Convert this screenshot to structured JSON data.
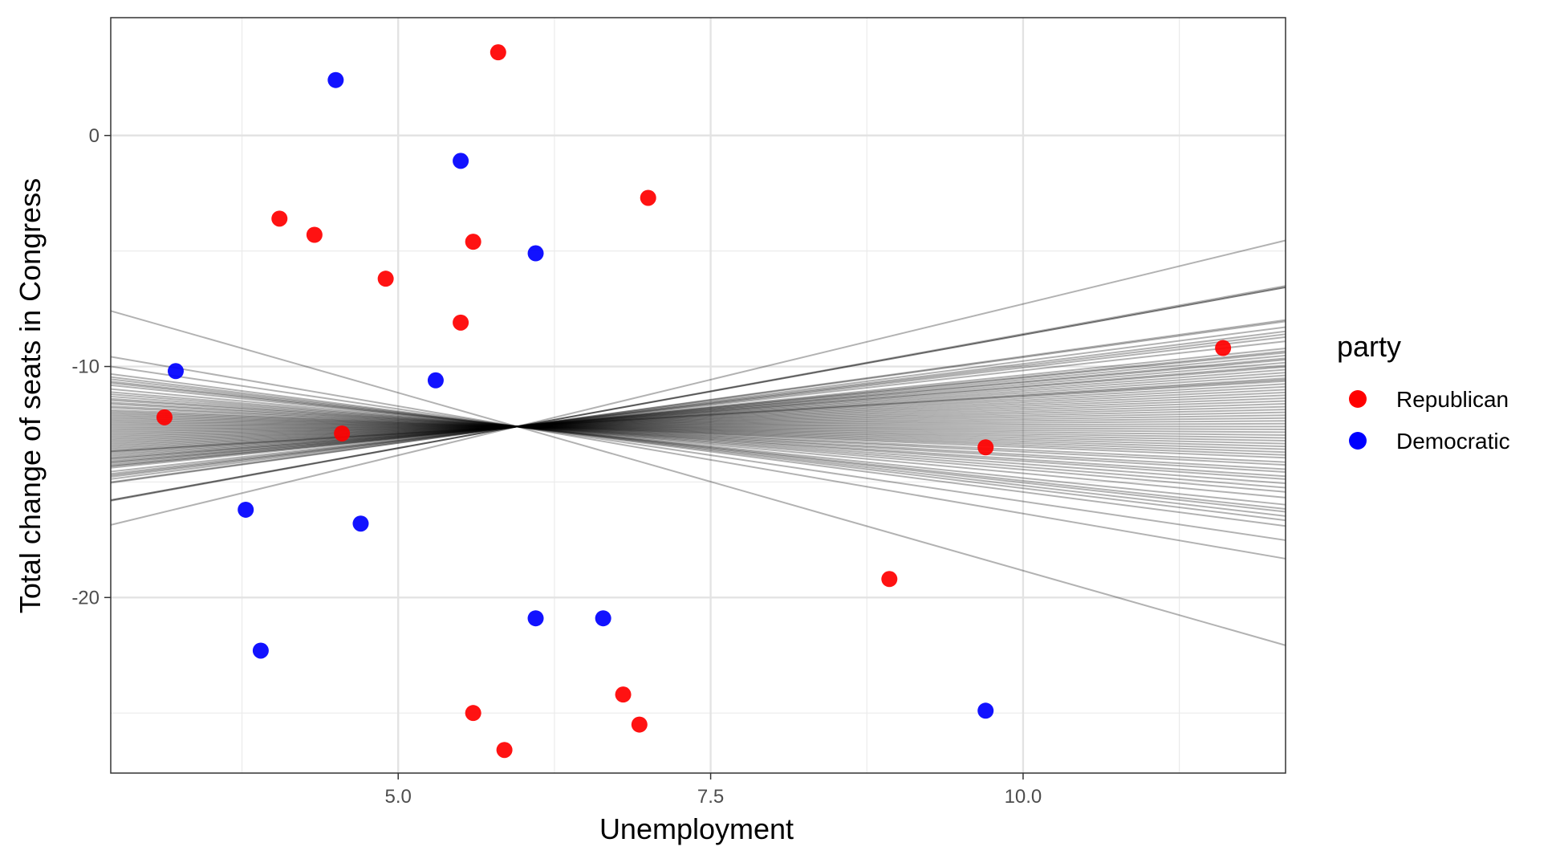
{
  "chart_data": {
    "type": "scatter",
    "xlabel": "Unemployment",
    "ylabel": "Total change of seats in Congress",
    "xlim": [
      2.7,
      12.1
    ],
    "ylim": [
      -27.6,
      5.1
    ],
    "x_ticks": [
      5.0,
      7.5,
      10.0
    ],
    "x_tick_labels": [
      "5.0",
      "7.5",
      "10.0"
    ],
    "x_minor_ticks": [
      3.75,
      6.25,
      8.75,
      11.25
    ],
    "y_ticks": [
      0,
      -10,
      -20
    ],
    "y_tick_labels": [
      "0",
      "-10",
      "-20"
    ],
    "y_minor_ticks": [
      -5,
      -15,
      -25
    ],
    "grid": true,
    "legend": {
      "title": "party",
      "position": "right",
      "entries": [
        {
          "label": "Republican",
          "color": "#ff0000"
        },
        {
          "label": "Democratic",
          "color": "#0000ff"
        }
      ]
    },
    "series": [
      {
        "name": "Republican",
        "color": "#ff0000",
        "points": [
          [
            5.8,
            3.6
          ],
          [
            4.05,
            -3.6
          ],
          [
            4.33,
            -4.3
          ],
          [
            5.6,
            -4.6
          ],
          [
            7.0,
            -2.7
          ],
          [
            4.9,
            -6.2
          ],
          [
            5.5,
            -8.1
          ],
          [
            3.13,
            -12.2
          ],
          [
            4.55,
            -12.9
          ],
          [
            11.6,
            -9.2
          ],
          [
            9.7,
            -13.5
          ],
          [
            8.93,
            -19.2
          ],
          [
            5.6,
            -25.0
          ],
          [
            5.85,
            -26.6
          ],
          [
            6.8,
            -24.2
          ],
          [
            6.93,
            -25.5
          ]
        ]
      },
      {
        "name": "Democratic",
        "color": "#0000ff",
        "points": [
          [
            4.5,
            2.4
          ],
          [
            5.5,
            -1.1
          ],
          [
            6.1,
            -5.1
          ],
          [
            3.22,
            -10.2
          ],
          [
            5.3,
            -10.6
          ],
          [
            3.78,
            -16.2
          ],
          [
            4.7,
            -16.8
          ],
          [
            3.9,
            -22.3
          ],
          [
            6.1,
            -20.9
          ],
          [
            6.64,
            -20.9
          ],
          [
            9.7,
            -24.9
          ]
        ]
      }
    ],
    "regression_lines": {
      "pivot": [
        5.95,
        -12.6
      ],
      "color": "#000000",
      "slopes": [
        1.31,
        0.99,
        0.98,
        0.98,
        0.75,
        0.74,
        0.7,
        0.67,
        0.65,
        0.63,
        0.6,
        0.55,
        0.53,
        0.52,
        0.5,
        0.48,
        0.47,
        0.45,
        0.43,
        0.42,
        0.4,
        0.38,
        0.36,
        0.34,
        0.33,
        0.32,
        0.3,
        0.28,
        0.26,
        0.24,
        0.22,
        0.2,
        0.18,
        0.16,
        0.14,
        0.12,
        0.1,
        0.08,
        0.06,
        0.04,
        0.02,
        0.0,
        -0.02,
        -0.04,
        -0.06,
        -0.08,
        -0.1,
        -0.12,
        -0.14,
        -0.16,
        -0.18,
        -0.2,
        -0.22,
        -0.25,
        -0.27,
        -0.3,
        -0.32,
        -0.35,
        -0.37,
        -0.4,
        -0.43,
        -0.46,
        -0.5,
        -0.55,
        -0.58,
        -0.6,
        -0.63,
        -0.66,
        -0.7,
        -0.8,
        -0.93,
        -1.54
      ]
    }
  }
}
